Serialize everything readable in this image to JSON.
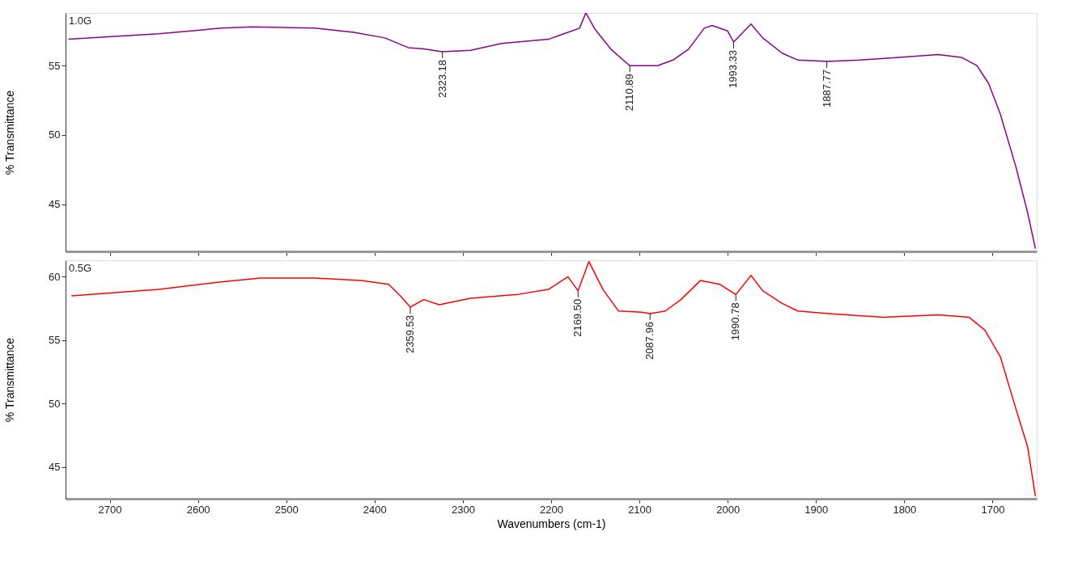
{
  "chart_data": [
    {
      "type": "line",
      "ylabel": "% Transmittance",
      "xlim": [
        2750,
        1650
      ],
      "ylim": [
        41.6,
        58.8
      ],
      "xticks": [
        2700,
        2600,
        2500,
        2400,
        2300,
        2200,
        2100,
        2000,
        1900,
        1800,
        1700
      ],
      "yticks": [
        45,
        50,
        55
      ],
      "tick_labels": "y",
      "grid": false,
      "series": [
        {
          "name": "1.0G",
          "color": "#8b008b",
          "x": [
            2746.8,
            2644.4,
            2573.8,
            2538.5,
            2467.9,
            2423.7,
            2388.4,
            2362.0,
            2344.3,
            2323.18,
            2291.3,
            2256.1,
            2203.1,
            2185.5,
            2167.8,
            2160.7,
            2150.1,
            2132.5,
            2114.8,
            2110.89,
            2079.5,
            2061.9,
            2044.2,
            2026.6,
            2017.7,
            2000.1,
            1993.33,
            1973.6,
            1960.4,
            1938.3,
            1920.6,
            1887.77,
            1850.0,
            1805.9,
            1761.8,
            1735.3,
            1717.7,
            1704.4,
            1691.2,
            1673.6,
            1660.3,
            1651.5
          ],
          "values": [
            56.9,
            57.3,
            57.7,
            57.8,
            57.7,
            57.4,
            57.0,
            56.3,
            56.2,
            56.0,
            56.1,
            56.6,
            56.9,
            57.3,
            57.7,
            58.8,
            57.6,
            56.2,
            55.2,
            55.0,
            55.0,
            55.4,
            56.2,
            57.7,
            57.9,
            57.5,
            56.7,
            58.0,
            57.0,
            55.9,
            55.4,
            55.3,
            55.4,
            55.6,
            55.8,
            55.6,
            55.0,
            53.7,
            51.5,
            47.7,
            44.4,
            41.8
          ]
        }
      ],
      "annotations": [
        {
          "text": "2323.18",
          "x": 2323.18,
          "y": 56.0
        },
        {
          "text": "2110.89",
          "x": 2110.89,
          "y": 55.0
        },
        {
          "text": "1993.33",
          "x": 1993.33,
          "y": 56.7
        },
        {
          "text": "1887.77",
          "x": 1887.77,
          "y": 55.3
        }
      ]
    },
    {
      "type": "line",
      "xlabel": "Wavenumbers (cm-1)",
      "ylabel": "% Transmittance",
      "xlim": [
        2750,
        1650
      ],
      "ylim": [
        42.5,
        61.3
      ],
      "xticks": [
        2700,
        2600,
        2500,
        2400,
        2300,
        2200,
        2100,
        2000,
        1900,
        1800,
        1700
      ],
      "yticks": [
        45,
        50,
        55,
        60
      ],
      "grid": false,
      "series": [
        {
          "name": "0.5G",
          "color": "#ff0000",
          "x": [
            2743.2,
            2644.4,
            2573.8,
            2529.7,
            2467.9,
            2414.9,
            2384.0,
            2370.8,
            2359.53,
            2344.3,
            2326.7,
            2291.3,
            2238.4,
            2203.1,
            2181.0,
            2169.5,
            2157.2,
            2141.3,
            2123.7,
            2097.2,
            2087.96,
            2070.7,
            2053.0,
            2031.0,
            2008.9,
            1990.78,
            1973.6,
            1960.4,
            1938.3,
            1920.6,
            1885.4,
            1823.6,
            1761.8,
            1726.5,
            1708.8,
            1691.2,
            1673.6,
            1660.3,
            1651.5
          ],
          "values": [
            58.5,
            59.0,
            59.6,
            59.9,
            59.9,
            59.7,
            59.4,
            58.5,
            57.6,
            58.2,
            57.8,
            58.3,
            58.6,
            59.0,
            60.0,
            58.9,
            61.2,
            59.0,
            57.3,
            57.2,
            57.1,
            57.3,
            58.2,
            59.7,
            59.4,
            58.6,
            60.1,
            58.9,
            57.9,
            57.3,
            57.1,
            56.8,
            57.0,
            56.8,
            55.8,
            53.7,
            49.6,
            46.6,
            42.7
          ]
        }
      ],
      "annotations": [
        {
          "text": "2359.53",
          "x": 2359.53,
          "y": 57.6
        },
        {
          "text": "2169.50",
          "x": 2169.5,
          "y": 58.9
        },
        {
          "text": "2087.96",
          "x": 2087.96,
          "y": 57.1
        },
        {
          "text": "1990.78",
          "x": 1990.78,
          "y": 58.6
        }
      ]
    }
  ]
}
